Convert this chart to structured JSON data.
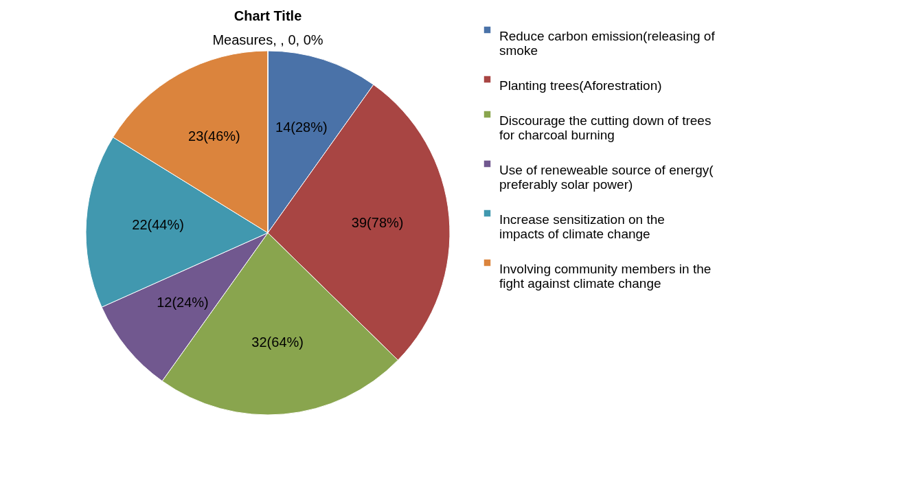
{
  "chart_data": {
    "type": "pie",
    "title": "Chart Title",
    "categories": [
      "Reduce carbon emission(releasing of smoke",
      "Planting trees(Aforestration)",
      "Discourage the cutting down of trees for charcoal burning",
      "Use of reneweable source of energy( preferably solar power)",
      "Increase sensitization on the impacts of climate change",
      "Involving community members in the fight against climate change",
      null
    ],
    "values": [
      14,
      39,
      32,
      12,
      22,
      23,
      0
    ],
    "colors": [
      "#4a72a8",
      "#a84543",
      "#89a54e",
      "#71588f",
      "#4198af",
      "#db843d",
      "#93a9cf"
    ],
    "value_labels": [
      "14(28%)",
      "39(78%)",
      "32(64%)",
      "12(24%)",
      "22(44%)",
      "23(46%)",
      "Measures, , 0, 0%"
    ],
    "legend": "right"
  }
}
